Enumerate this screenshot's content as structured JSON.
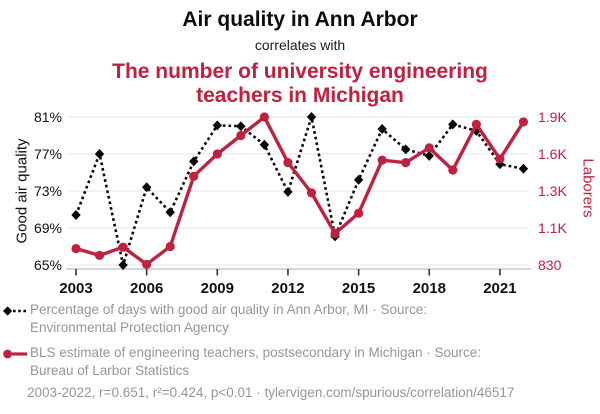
{
  "header": {
    "title": "Air quality in Ann Arbor",
    "connector": "correlates with",
    "subtitle": "The number of university engineering\nteachers in Michigan"
  },
  "chart_data": {
    "type": "line",
    "title": "Air quality in Ann Arbor correlates with the number of university engineering teachers in Michigan",
    "x": [
      2003,
      2004,
      2005,
      2006,
      2007,
      2008,
      2009,
      2010,
      2011,
      2012,
      2013,
      2014,
      2015,
      2016,
      2017,
      2018,
      2019,
      2020,
      2021,
      2022
    ],
    "series": [
      {
        "name": "Percentage of days with good air quality in Ann Arbor, MI",
        "axis": "left",
        "style": "dashed-diamond",
        "values": [
          70.4,
          77.0,
          65.0,
          73.4,
          70.7,
          76.2,
          80.1,
          80.0,
          78.0,
          72.9,
          81.0,
          68.1,
          74.2,
          79.7,
          77.5,
          76.8,
          80.2,
          79.5,
          75.9,
          75.4
        ]
      },
      {
        "name": "BLS estimate of engineering teachers, postsecondary in Michigan",
        "axis": "right",
        "style": "solid-circle",
        "values": [
          950,
          900,
          960,
          835,
          965,
          1420,
          1600,
          1750,
          1900,
          1530,
          1290,
          1060,
          1180,
          1550,
          1530,
          1650,
          1470,
          1840,
          1560,
          1860
        ]
      }
    ],
    "left_axis": {
      "title": "Good air quality",
      "tick_labels": [
        "65%",
        "69%",
        "73%",
        "77%",
        "81%"
      ],
      "tick_values": [
        65,
        69,
        73,
        77,
        81
      ]
    },
    "right_axis": {
      "title": "Laborers",
      "tick_labels": [
        "830",
        "1.1K",
        "1.3K",
        "1.6K",
        "1.9K"
      ],
      "tick_values": [
        830,
        1100,
        1300,
        1600,
        1900
      ]
    },
    "x_axis": {
      "tick_labels": [
        "2003",
        "2006",
        "2009",
        "2012",
        "2015",
        "2018",
        "2021"
      ],
      "tick_values": [
        2003,
        2006,
        2009,
        2012,
        2015,
        2018,
        2021
      ]
    },
    "grid": true,
    "legend_position": "bottom"
  },
  "legend": {
    "items": [
      {
        "marker": "black-diamond-dashed",
        "label": "Percentage of days with good air quality in Ann Arbor, MI · Source:\nEnvironmental Protection Agency"
      },
      {
        "marker": "red-circle-solid",
        "label": "BLS estimate of engineering teachers, postsecondary in Michigan · Source:\nBureau of Larbor Statistics"
      }
    ]
  },
  "footer": {
    "stats_line": "2003-2022, r=0.651, r²=0.424, p<0.01 · tylervigen.com/spurious/correlation/46517"
  },
  "colors": {
    "accent_red": "#bf2140",
    "series_black": "#0a0a0a",
    "legend_gray": "#969696",
    "gridline": "#ededed",
    "axis_line": "#c9c9c9",
    "tick_mark": "#333333"
  }
}
